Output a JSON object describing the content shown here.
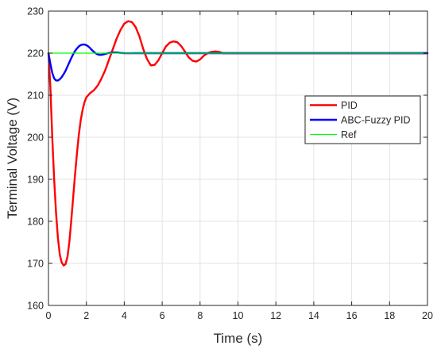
{
  "chart_data": {
    "type": "line",
    "title": "",
    "xlabel": "Time (s)",
    "ylabel": "Terminal Voltage (V)",
    "xlim": [
      0,
      20
    ],
    "ylim": [
      160,
      230
    ],
    "xticks": [
      0,
      2,
      4,
      6,
      8,
      10,
      12,
      14,
      16,
      18,
      20
    ],
    "yticks": [
      160,
      170,
      180,
      190,
      200,
      210,
      220,
      230
    ],
    "grid": true,
    "legend_position": "right",
    "series": [
      {
        "name": "PID",
        "color": "#ff0000",
        "x": [
          0,
          0.1,
          0.2,
          0.3,
          0.4,
          0.5,
          0.6,
          0.7,
          0.8,
          0.9,
          1.0,
          1.1,
          1.2,
          1.3,
          1.4,
          1.5,
          1.6,
          1.7,
          1.8,
          1.9,
          2.0,
          2.2,
          2.4,
          2.6,
          2.8,
          3.0,
          3.2,
          3.4,
          3.6,
          3.8,
          4.0,
          4.2,
          4.4,
          4.6,
          4.8,
          5.0,
          5.2,
          5.4,
          5.6,
          5.8,
          6.0,
          6.2,
          6.4,
          6.6,
          6.8,
          7.0,
          7.2,
          7.4,
          7.6,
          7.8,
          8.0,
          8.2,
          8.4,
          8.6,
          8.8,
          9.0,
          9.2,
          9.4,
          9.6,
          9.8,
          10.0,
          10.2,
          10.4,
          10.6,
          10.8,
          11.0,
          11.2,
          11.4,
          11.6,
          11.8,
          12.0,
          12.2,
          12.4,
          12.6,
          12.8,
          13.0,
          13.5,
          14.0,
          15.0,
          16.0,
          17.0,
          18.0,
          19.0,
          20.0
        ],
        "y": [
          220,
          212,
          200,
          190,
          182,
          176,
          172,
          170.2,
          169.5,
          169.8,
          171.5,
          175,
          180,
          185.5,
          191,
          196,
          200.5,
          204,
          206.5,
          208.3,
          209.5,
          210.5,
          211.2,
          212.3,
          214,
          216,
          218.5,
          221,
          223.5,
          225.5,
          227,
          227.6,
          227.4,
          226.2,
          224,
          221,
          218.6,
          217.1,
          217.2,
          218.3,
          220,
          221.6,
          222.5,
          222.8,
          222.6,
          221.7,
          220.4,
          219,
          218.2,
          218,
          218.5,
          219.4,
          220,
          220.3,
          220.4,
          220.3,
          220,
          220,
          220,
          220,
          220,
          220,
          220,
          220,
          220,
          220,
          220,
          220,
          220,
          220,
          220,
          220,
          220,
          220,
          220,
          220,
          220,
          220,
          220,
          220,
          220,
          220,
          220,
          220
        ],
        "_y_note_disabled": ""
      },
      {
        "name": "ABC-Fuzzy PID",
        "color": "#0000ff",
        "x": [
          0,
          0.1,
          0.2,
          0.3,
          0.4,
          0.5,
          0.6,
          0.7,
          0.8,
          0.9,
          1.0,
          1.1,
          1.2,
          1.3,
          1.4,
          1.5,
          1.6,
          1.7,
          1.8,
          1.9,
          2.0,
          2.1,
          2.2,
          2.3,
          2.4,
          2.5,
          2.6,
          2.7,
          2.8,
          2.9,
          3.0,
          3.2,
          3.4,
          3.6,
          3.8,
          4.0,
          4.2,
          4.4,
          4.6,
          4.8,
          5.0,
          6.0,
          8.0,
          10.0,
          12.0,
          14.0,
          16.0,
          18.0,
          20.0
        ],
        "y": [
          220,
          217.5,
          215.3,
          214,
          213.5,
          213.5,
          213.8,
          214.3,
          215,
          215.8,
          216.8,
          217.8,
          218.8,
          219.7,
          220.5,
          221.1,
          221.6,
          221.9,
          222.05,
          222.05,
          221.9,
          221.6,
          221.2,
          220.7,
          220.3,
          219.95,
          219.7,
          219.6,
          219.6,
          219.7,
          219.85,
          220.05,
          220.15,
          220.15,
          220.05,
          220,
          219.98,
          219.98,
          220,
          220,
          220,
          220,
          220,
          220,
          220,
          220,
          220,
          220,
          220
        ]
      },
      {
        "name": "Ref",
        "color": "#00ff00",
        "x": [
          0,
          20
        ],
        "y": [
          220,
          220
        ]
      }
    ]
  }
}
